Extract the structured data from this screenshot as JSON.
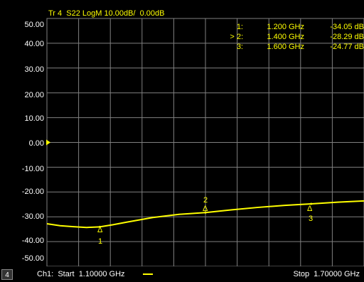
{
  "header": {
    "trace_title": "Tr 4  S22 LogM 10.00dB/  0.00dB"
  },
  "markers": [
    {
      "id": "1:",
      "freq": "1.200 GHz",
      "value": "-34.05 dB"
    },
    {
      "id": "> 2:",
      "freq": "1.400 GHz",
      "value": "-28.29 dB"
    },
    {
      "id": "3:",
      "freq": "1.600 GHz",
      "value": "-24.77 dB"
    }
  ],
  "y_axis": {
    "ticks": [
      "50.00",
      "40.00",
      "30.00",
      "20.00",
      "10.00",
      "0.00",
      "-10.00",
      "-20.00",
      "-30.00",
      "-40.00",
      "-50.00"
    ]
  },
  "footer": {
    "channel_number": "4",
    "start_label": "Ch1:  Start  1.10000 GHz",
    "stop_label": "Stop  1.70000 GHz"
  },
  "marker_labels": [
    "1",
    "2",
    "3"
  ],
  "marker_delta_symbol": "Δ",
  "colors": {
    "trace": "#ffff00",
    "grid": "#808080",
    "background": "#000000",
    "text": "#ffffff"
  },
  "chart_data": {
    "type": "line",
    "y_unit": "dB",
    "x_unit": "GHz",
    "xlim": [
      1.1,
      1.7
    ],
    "ylim": [
      -50,
      50
    ],
    "series": [
      {
        "x": [
          1.1,
          1.125,
          1.15,
          1.175,
          1.2,
          1.225,
          1.25,
          1.3,
          1.35,
          1.4,
          1.45,
          1.5,
          1.55,
          1.6,
          1.65,
          1.7
        ],
        "values": [
          -32.8,
          -33.6,
          -34.0,
          -34.3,
          -34.05,
          -33.2,
          -32.2,
          -30.3,
          -29.0,
          -28.29,
          -27.2,
          -26.2,
          -25.4,
          -24.77,
          -24.1,
          -23.6
        ]
      }
    ],
    "markers": [
      {
        "label": "1",
        "x": 1.2,
        "y": -34.05
      },
      {
        "label": "2",
        "x": 1.4,
        "y": -28.29
      },
      {
        "label": "3",
        "x": 1.6,
        "y": -24.77
      }
    ],
    "reference_level": 0.0,
    "grid": true
  }
}
